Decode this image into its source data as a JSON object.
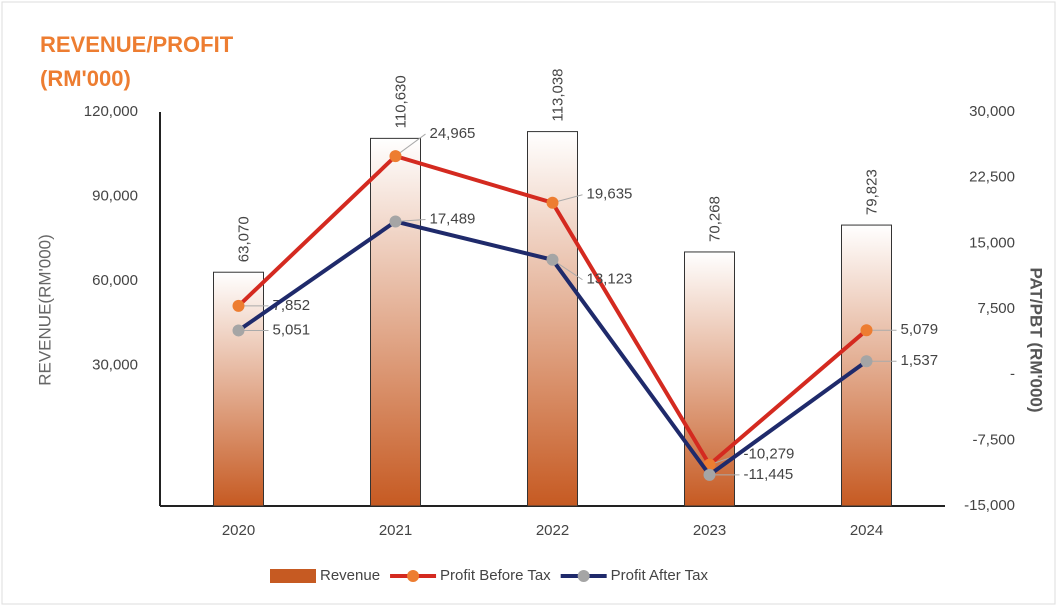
{
  "chart_data": {
    "type": "bar-line",
    "title": [
      "REVENUE/PROFIT",
      "(RM'000)"
    ],
    "y_label": "REVENUE(RM'000)",
    "y2_label": "PAT/PBT (RM'000)",
    "categories": [
      "2020",
      "2021",
      "2022",
      "2023",
      "2024"
    ],
    "ylim": [
      -20000,
      120000
    ],
    "yticks": [
      {
        "value": 30000,
        "label": "30,000"
      },
      {
        "value": 60000,
        "label": "60,000"
      },
      {
        "value": 90000,
        "label": "90,000"
      },
      {
        "value": 120000,
        "label": "120,000"
      }
    ],
    "y2lim": [
      -15000,
      30000
    ],
    "y2ticks": [
      {
        "value": -15000,
        "label": "-15,000"
      },
      {
        "value": -7500,
        "label": "-7,500"
      },
      {
        "value": 0,
        "label": "-"
      },
      {
        "value": 7500,
        "label": "7,500"
      },
      {
        "value": 15000,
        "label": "15,000"
      },
      {
        "value": 22500,
        "label": "22,500"
      },
      {
        "value": 30000,
        "label": "30,000"
      }
    ],
    "series": [
      {
        "name": "Revenue",
        "type": "bar",
        "color": "#c65a22",
        "values": [
          63070,
          110630,
          113038,
          70268,
          79823
        ],
        "value_labels": [
          "63,070",
          "110,630",
          "113,038",
          "70,268",
          "79,823"
        ]
      },
      {
        "name": "Profit  Before Tax",
        "type": "line",
        "axis": "y2",
        "color": "#d42a20",
        "marker_color": "#ed7d31",
        "values": [
          7852,
          24965,
          19635,
          -10279,
          5079
        ],
        "value_labels": [
          "7,852",
          "24,965",
          "19,635",
          "-10,279",
          "5,079"
        ]
      },
      {
        "name": "Profit After Tax",
        "type": "line",
        "axis": "y2",
        "color": "#1f2a6b",
        "marker_color": "#a5a5a5",
        "values": [
          5051,
          17489,
          13123,
          -11445,
          1537
        ],
        "value_labels": [
          "5,051",
          "17,489",
          "13,123",
          "-11,445",
          "1,537"
        ]
      }
    ]
  }
}
